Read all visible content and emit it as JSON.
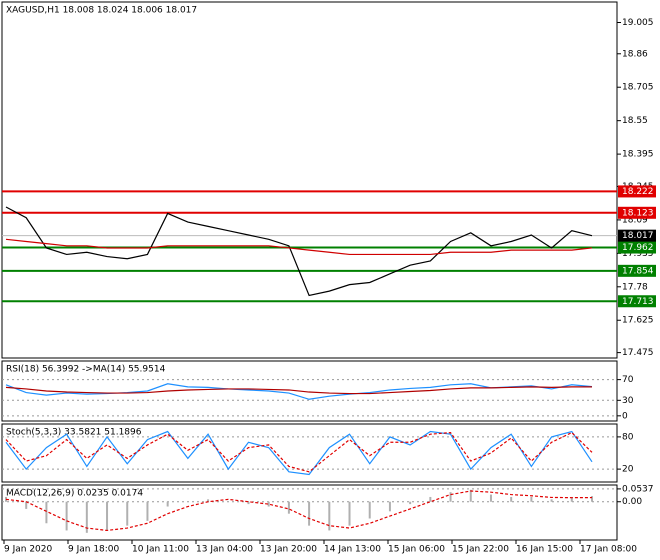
{
  "chart_data": [
    {
      "type": "line",
      "title": "XAGUSD,H1  18.008 18.024 18.006 18.017",
      "ylim": [
        17.45,
        19.1
      ],
      "yticks": [
        17.475,
        17.625,
        17.78,
        17.935,
        18.09,
        18.245,
        18.395,
        18.55,
        18.705,
        18.86,
        19.005
      ],
      "series": [
        {
          "name": "Close",
          "color": "#000000",
          "values": [
            18.15,
            18.1,
            17.96,
            17.93,
            17.94,
            17.92,
            17.91,
            17.93,
            18.12,
            18.08,
            18.06,
            18.04,
            18.02,
            18.0,
            17.97,
            17.74,
            17.76,
            17.79,
            17.8,
            17.84,
            17.88,
            17.9,
            17.99,
            18.03,
            17.97,
            17.99,
            18.02,
            17.96,
            18.04,
            18.017
          ]
        },
        {
          "name": "MA",
          "color": "#d00000",
          "values": [
            18.0,
            17.99,
            17.98,
            17.97,
            17.97,
            17.96,
            17.96,
            17.96,
            17.97,
            17.97,
            17.97,
            17.97,
            17.97,
            17.97,
            17.96,
            17.95,
            17.94,
            17.93,
            17.93,
            17.93,
            17.93,
            17.93,
            17.94,
            17.94,
            17.94,
            17.95,
            17.95,
            17.95,
            17.95,
            17.96
          ]
        }
      ],
      "levels": [
        {
          "value": 18.222,
          "color": "#e00000"
        },
        {
          "value": 18.123,
          "color": "#e00000"
        },
        {
          "value": 17.962,
          "color": "#008000"
        },
        {
          "value": 17.854,
          "color": "#008000"
        },
        {
          "value": 17.713,
          "color": "#008000"
        }
      ],
      "last_price": 18.017
    },
    {
      "type": "line",
      "title": "RSI(18) 56.3992 ->MA(14) 55.9514",
      "ylim": [
        -10,
        106
      ],
      "yticks": [
        0,
        30,
        70
      ],
      "series": [
        {
          "name": "RSI",
          "color": "#1e90ff",
          "values": [
            60,
            45,
            40,
            44,
            42,
            43,
            45,
            48,
            62,
            56,
            55,
            52,
            50,
            48,
            44,
            32,
            38,
            42,
            45,
            50,
            53,
            55,
            60,
            62,
            54,
            56,
            58,
            52,
            60,
            56.3992
          ]
        },
        {
          "name": "MA",
          "color": "#b00000",
          "values": [
            55,
            52,
            48,
            46,
            45,
            44,
            44,
            45,
            48,
            50,
            51,
            52,
            52,
            51,
            50,
            46,
            44,
            43,
            43,
            45,
            47,
            49,
            52,
            54,
            54,
            55,
            56,
            55,
            56,
            55.9514
          ]
        }
      ]
    },
    {
      "type": "line",
      "title": "Stoch(5,3,3) 33.5821 51.1896",
      "ylim": [
        -4,
        104
      ],
      "yticks": [
        20,
        80
      ],
      "series": [
        {
          "name": "Main",
          "color": "#1e90ff",
          "values": [
            70,
            20,
            60,
            85,
            25,
            80,
            30,
            75,
            90,
            40,
            85,
            20,
            70,
            60,
            15,
            10,
            60,
            85,
            30,
            80,
            65,
            90,
            85,
            20,
            60,
            85,
            25,
            80,
            90,
            33.5821
          ]
        },
        {
          "name": "Signal",
          "color": "#e00000",
          "dash": true,
          "values": [
            75,
            35,
            45,
            75,
            40,
            65,
            40,
            65,
            85,
            55,
            75,
            35,
            60,
            65,
            25,
            15,
            45,
            75,
            45,
            70,
            70,
            85,
            88,
            35,
            50,
            78,
            35,
            70,
            88,
            51.1896
          ]
        }
      ]
    },
    {
      "type": "histogram",
      "title": "MACD(12,26,9) 0.0235 0.0174",
      "ylim": [
        -0.16,
        0.07
      ],
      "yticks": [
        {
          "value": 0,
          "label": "0.00"
        },
        0.0537
      ],
      "values": [
        0.02,
        -0.03,
        -0.09,
        -0.12,
        -0.13,
        -0.12,
        -0.1,
        -0.08,
        -0.02,
        0.0,
        0.01,
        0.0,
        -0.01,
        -0.02,
        -0.05,
        -0.1,
        -0.12,
        -0.1,
        -0.07,
        -0.04,
        -0.01,
        0.02,
        0.04,
        0.05,
        0.03,
        0.02,
        0.02,
        0.01,
        0.02,
        0.0235
      ],
      "signal": [
        0.01,
        0.0,
        -0.04,
        -0.08,
        -0.11,
        -0.12,
        -0.11,
        -0.09,
        -0.05,
        -0.02,
        0.0,
        0.01,
        0.0,
        -0.01,
        -0.03,
        -0.07,
        -0.1,
        -0.11,
        -0.09,
        -0.06,
        -0.03,
        0.0,
        0.03,
        0.045,
        0.04,
        0.03,
        0.025,
        0.018,
        0.017,
        0.0174
      ],
      "color": "#b0b0b0",
      "signal_color": "#e00000",
      "categories": [
        "9 Jan 2020",
        "9 Jan 18:00",
        "10 Jan 11:00",
        "13 Jan 04:00",
        "13 Jan 20:00",
        "14 Jan 13:00",
        "15 Jan 06:00",
        "15 Jan 22:00",
        "16 Jan 15:00",
        "17 Jan 08:00"
      ]
    }
  ]
}
